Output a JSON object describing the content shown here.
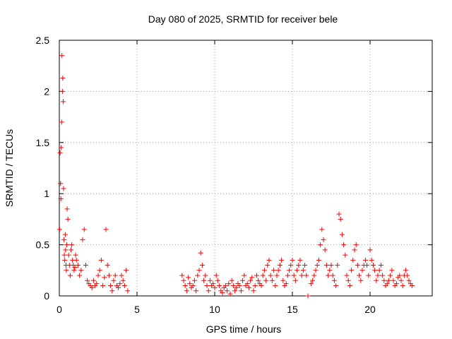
{
  "chart_data": {
    "type": "scatter",
    "title": "Day 080 of 2025, SRMTID for receiver bele",
    "xlabel": "GPS time / hours",
    "ylabel": "SRMTID / TECUs",
    "xlim": [
      0,
      24
    ],
    "ylim": [
      0,
      2.5
    ],
    "x_ticks": [
      0,
      5,
      10,
      15,
      20
    ],
    "x_tick_labels": [
      "0",
      "5",
      "10",
      "15",
      "20"
    ],
    "y_ticks": [
      0,
      0.5,
      1,
      1.5,
      2,
      2.5
    ],
    "y_tick_labels": [
      "0",
      "0.5",
      "1",
      "1.5",
      "2",
      "2.5"
    ],
    "grid": true,
    "marker": "plus",
    "series": [
      {
        "name": "SRMTID",
        "color": "#ff0000",
        "x": [
          0.02,
          0.05,
          0.08,
          0.1,
          0.12,
          0.15,
          0.17,
          0.2,
          0.22,
          0.25,
          0.27,
          0.3,
          0.32,
          0.35,
          0.38,
          0.4,
          0.43,
          0.45,
          0.48,
          0.5,
          0.55,
          0.6,
          0.65,
          0.7,
          0.75,
          0.8,
          0.85,
          0.9,
          0.95,
          1.0,
          1.05,
          1.1,
          1.2,
          1.3,
          1.4,
          1.5,
          1.6,
          1.7,
          1.8,
          1.9,
          2.0,
          2.1,
          2.2,
          2.3,
          2.4,
          2.5,
          2.6,
          2.7,
          2.8,
          2.9,
          3.0,
          3.1,
          3.2,
          3.3,
          3.4,
          3.5,
          3.6,
          3.7,
          3.8,
          3.9,
          4.0,
          4.1,
          4.2,
          4.3,
          4.4,
          7.9,
          8.0,
          8.1,
          8.2,
          8.3,
          8.4,
          8.5,
          8.6,
          8.7,
          8.8,
          8.9,
          9.0,
          9.1,
          9.2,
          9.3,
          9.4,
          9.5,
          9.6,
          9.7,
          9.8,
          9.9,
          10.0,
          10.1,
          10.2,
          10.3,
          10.4,
          10.5,
          10.6,
          10.7,
          10.8,
          10.9,
          11.0,
          11.1,
          11.2,
          11.3,
          11.4,
          11.5,
          11.6,
          11.7,
          11.8,
          11.9,
          12.0,
          12.1,
          12.2,
          12.3,
          12.4,
          12.5,
          12.6,
          12.7,
          12.8,
          12.9,
          13.0,
          13.1,
          13.2,
          13.3,
          13.4,
          13.5,
          13.6,
          13.7,
          13.8,
          13.9,
          14.0,
          14.1,
          14.2,
          14.3,
          14.4,
          14.5,
          14.6,
          14.7,
          14.8,
          14.9,
          15.0,
          15.1,
          15.2,
          15.3,
          15.4,
          15.5,
          15.6,
          15.7,
          15.8,
          15.9,
          16.0,
          16.2,
          16.3,
          16.4,
          16.5,
          16.6,
          16.7,
          16.8,
          16.9,
          17.0,
          17.1,
          17.2,
          17.3,
          17.4,
          17.5,
          17.6,
          17.7,
          17.8,
          17.9,
          18.0,
          18.1,
          18.2,
          18.3,
          18.4,
          18.5,
          18.6,
          18.7,
          18.8,
          18.9,
          19.0,
          19.1,
          19.2,
          19.3,
          19.4,
          19.5,
          19.6,
          19.7,
          19.8,
          19.9,
          20.0,
          20.1,
          20.2,
          20.3,
          20.4,
          20.5,
          20.6,
          20.7,
          20.8,
          20.9,
          21.0,
          21.1,
          21.2,
          21.3,
          21.4,
          21.5,
          21.6,
          21.7,
          21.8,
          21.9,
          22.0,
          22.1,
          22.2,
          22.3,
          22.4,
          22.5,
          22.6,
          22.7
        ],
        "y": [
          0.65,
          1.4,
          1.1,
          0.95,
          1.45,
          1.7,
          2.35,
          2.0,
          2.13,
          1.9,
          1.05,
          0.55,
          0.4,
          0.35,
          0.6,
          0.45,
          0.3,
          0.25,
          0.5,
          0.85,
          0.75,
          0.4,
          0.3,
          0.2,
          0.45,
          0.5,
          0.35,
          0.3,
          0.25,
          0.28,
          0.4,
          0.35,
          0.3,
          0.2,
          0.25,
          0.55,
          0.65,
          0.3,
          0.15,
          0.12,
          0.1,
          0.08,
          0.15,
          0.1,
          0.12,
          0.2,
          0.25,
          0.35,
          0.1,
          0.18,
          0.65,
          0.3,
          0.2,
          0.1,
          0.05,
          0.15,
          0.2,
          0.1,
          0.08,
          0.12,
          0.2,
          0.15,
          0.1,
          0.25,
          0.05,
          0.2,
          0.15,
          0.1,
          0.05,
          0.18,
          0.12,
          0.08,
          0.1,
          0.15,
          0.05,
          0.2,
          0.25,
          0.42,
          0.3,
          0.15,
          0.2,
          0.1,
          0.05,
          0.15,
          0.1,
          0.12,
          0.08,
          0.2,
          0.15,
          0.1,
          0.05,
          0.03,
          0.08,
          0.1,
          0.05,
          0.12,
          0.02,
          0.15,
          0.1,
          0.05,
          0.08,
          0.12,
          0.1,
          0.05,
          0.15,
          0.2,
          0.1,
          0.12,
          0.08,
          0.15,
          0.18,
          0.05,
          0.1,
          0.2,
          0.15,
          0.12,
          0.1,
          0.2,
          0.25,
          0.15,
          0.3,
          0.35,
          0.2,
          0.15,
          0.25,
          0.1,
          0.2,
          0.25,
          0.3,
          0.35,
          0.15,
          0.1,
          0.12,
          0.2,
          0.25,
          0.3,
          0.35,
          0.2,
          0.15,
          0.25,
          0.3,
          0.35,
          0.2,
          0.25,
          0.3,
          0.2,
          0.0,
          0.12,
          0.15,
          0.2,
          0.25,
          0.3,
          0.35,
          0.5,
          0.65,
          0.55,
          0.45,
          0.3,
          0.2,
          0.25,
          0.3,
          0.2,
          0.15,
          0.1,
          0.3,
          0.8,
          0.75,
          0.6,
          0.5,
          0.4,
          0.2,
          0.15,
          0.1,
          0.25,
          0.35,
          0.45,
          0.5,
          0.3,
          0.2,
          0.15,
          0.25,
          0.3,
          0.35,
          0.3,
          0.2,
          0.45,
          0.35,
          0.3,
          0.25,
          0.15,
          0.2,
          0.25,
          0.3,
          0.2,
          0.15,
          0.1,
          0.12,
          0.15,
          0.2,
          0.25,
          0.15,
          0.1,
          0.12,
          0.18,
          0.2,
          0.15,
          0.1,
          0.2,
          0.25,
          0.2,
          0.15,
          0.12,
          0.1
        ]
      }
    ]
  }
}
